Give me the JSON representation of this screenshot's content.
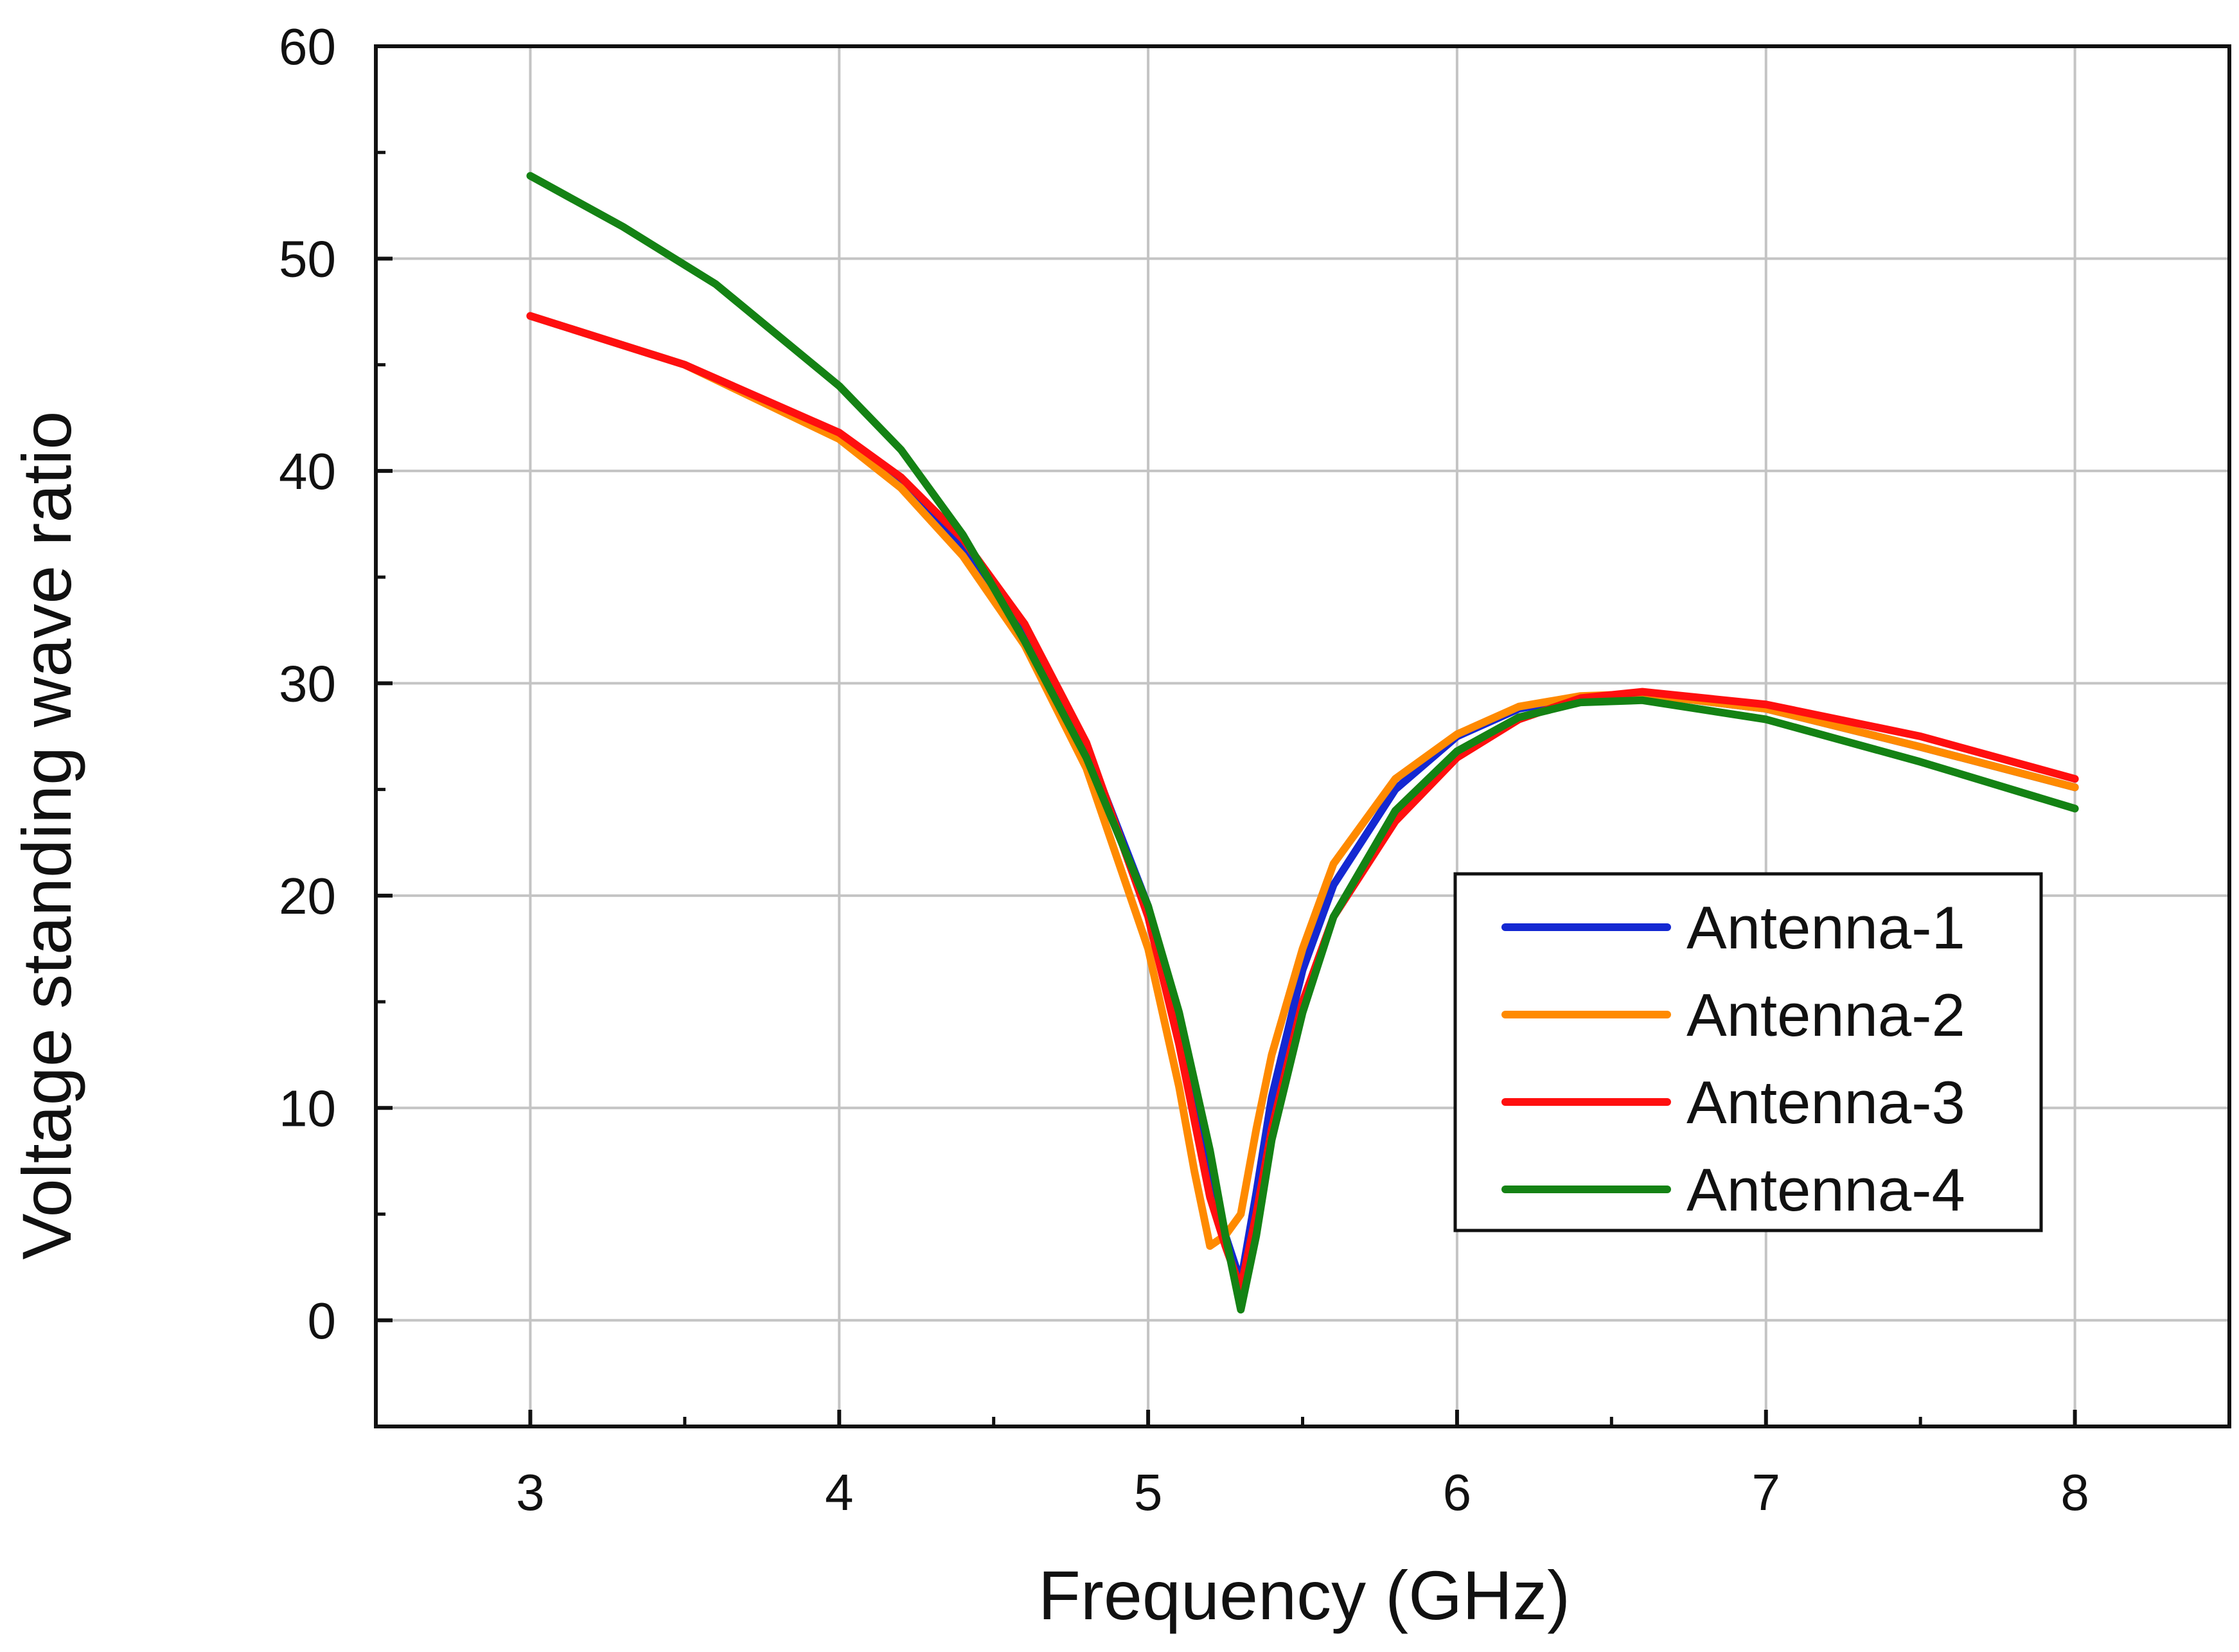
{
  "chart_data": {
    "type": "line",
    "title": "",
    "xlabel": "Frequency (GHz)",
    "ylabel": "Voltage standing wave ratio",
    "xlim": [
      2.5,
      8.5
    ],
    "ylim": [
      -5,
      60
    ],
    "xticks": [
      3,
      4,
      5,
      6,
      7,
      8
    ],
    "yticks": [
      0,
      10,
      20,
      30,
      40,
      50,
      60
    ],
    "xtick_labels": [
      "3",
      "4",
      "5",
      "6",
      "7",
      "8"
    ],
    "ytick_labels": [
      "0",
      "10",
      "20",
      "30",
      "40",
      "50",
      "60"
    ],
    "grid": true,
    "legend_position": "middle-right",
    "series": [
      {
        "name": "Antenna-1",
        "color": "#1428d2",
        "x": [
          3.0,
          3.5,
          4.0,
          4.2,
          4.4,
          4.6,
          4.8,
          5.0,
          5.1,
          5.2,
          5.25,
          5.3,
          5.35,
          5.4,
          5.5,
          5.6,
          5.8,
          6.0,
          6.2,
          6.4,
          6.6,
          7.0,
          7.5,
          8.0
        ],
        "y": [
          47.3,
          45.0,
          41.7,
          39.5,
          36.5,
          32.5,
          27.0,
          19.5,
          14.0,
          6.5,
          4.0,
          1.8,
          6.0,
          10.5,
          16.5,
          20.5,
          25.0,
          27.5,
          28.8,
          29.3,
          29.5,
          28.8,
          27.0,
          25.1
        ]
      },
      {
        "name": "Antenna-2",
        "color": "#ff8a00",
        "x": [
          3.0,
          3.5,
          4.0,
          4.2,
          4.4,
          4.6,
          4.8,
          5.0,
          5.1,
          5.15,
          5.2,
          5.25,
          5.3,
          5.35,
          5.4,
          5.5,
          5.6,
          5.8,
          6.0,
          6.2,
          6.4,
          6.6,
          7.0,
          7.5,
          8.0
        ],
        "y": [
          47.3,
          45.0,
          41.5,
          39.2,
          36.0,
          31.8,
          26.0,
          17.5,
          11.0,
          7.0,
          3.5,
          4.0,
          5.0,
          9.0,
          12.5,
          17.5,
          21.5,
          25.5,
          27.6,
          28.9,
          29.4,
          29.5,
          28.8,
          27.0,
          25.1
        ]
      },
      {
        "name": "Antenna-3",
        "color": "#ff0f0f",
        "x": [
          3.0,
          3.5,
          4.0,
          4.2,
          4.4,
          4.6,
          4.8,
          5.0,
          5.1,
          5.2,
          5.25,
          5.3,
          5.35,
          5.4,
          5.5,
          5.6,
          5.8,
          6.0,
          6.2,
          6.4,
          6.6,
          7.0,
          7.5,
          8.0
        ],
        "y": [
          47.3,
          45.0,
          41.8,
          39.7,
          36.8,
          32.8,
          27.2,
          19.0,
          13.0,
          5.8,
          3.5,
          1.5,
          5.0,
          9.0,
          15.0,
          19.0,
          23.5,
          26.5,
          28.3,
          29.3,
          29.6,
          29.0,
          27.5,
          25.5
        ]
      },
      {
        "name": "Antenna-4",
        "color": "#148214",
        "x": [
          3.0,
          3.3,
          3.6,
          4.0,
          4.2,
          4.4,
          4.6,
          4.8,
          5.0,
          5.1,
          5.2,
          5.25,
          5.3,
          5.35,
          5.4,
          5.5,
          5.6,
          5.8,
          6.0,
          6.2,
          6.4,
          6.6,
          7.0,
          7.5,
          8.0
        ],
        "y": [
          53.9,
          51.5,
          48.8,
          44.0,
          41.0,
          37.0,
          32.0,
          26.5,
          19.5,
          14.5,
          8.0,
          4.0,
          0.5,
          4.0,
          8.5,
          14.5,
          19.0,
          24.0,
          26.8,
          28.4,
          29.1,
          29.2,
          28.3,
          26.3,
          24.1
        ]
      }
    ]
  }
}
